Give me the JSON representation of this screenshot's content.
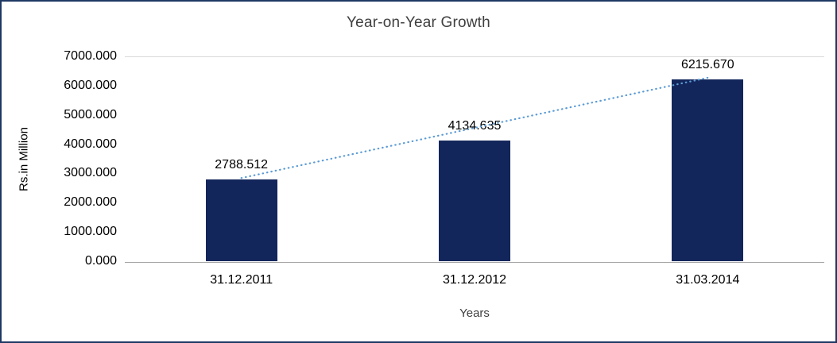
{
  "chart_data": {
    "type": "bar",
    "title": "Year-on-Year Growth",
    "xlabel": "Years",
    "ylabel": "Rs.in Million",
    "categories": [
      "31.12.2011",
      "31.12.2012",
      "31.03.2014"
    ],
    "values": [
      2788.512,
      4134.635,
      6215.67
    ],
    "data_labels": [
      "2788.512",
      "4134.635",
      "6215.670"
    ],
    "ylim": [
      0,
      7000
    ],
    "ytick_step": 1000,
    "ytick_labels": [
      "0.000",
      "1000.000",
      "2000.000",
      "3000.000",
      "4000.000",
      "5000.000",
      "6000.000",
      "7000.000"
    ],
    "grid": false,
    "legend": "none",
    "bar_color": "#13265B",
    "frame_color": "#1F3864",
    "trendline": {
      "style": "dotted",
      "color": "#5B9BD5"
    },
    "background": "#FFFFFF"
  }
}
